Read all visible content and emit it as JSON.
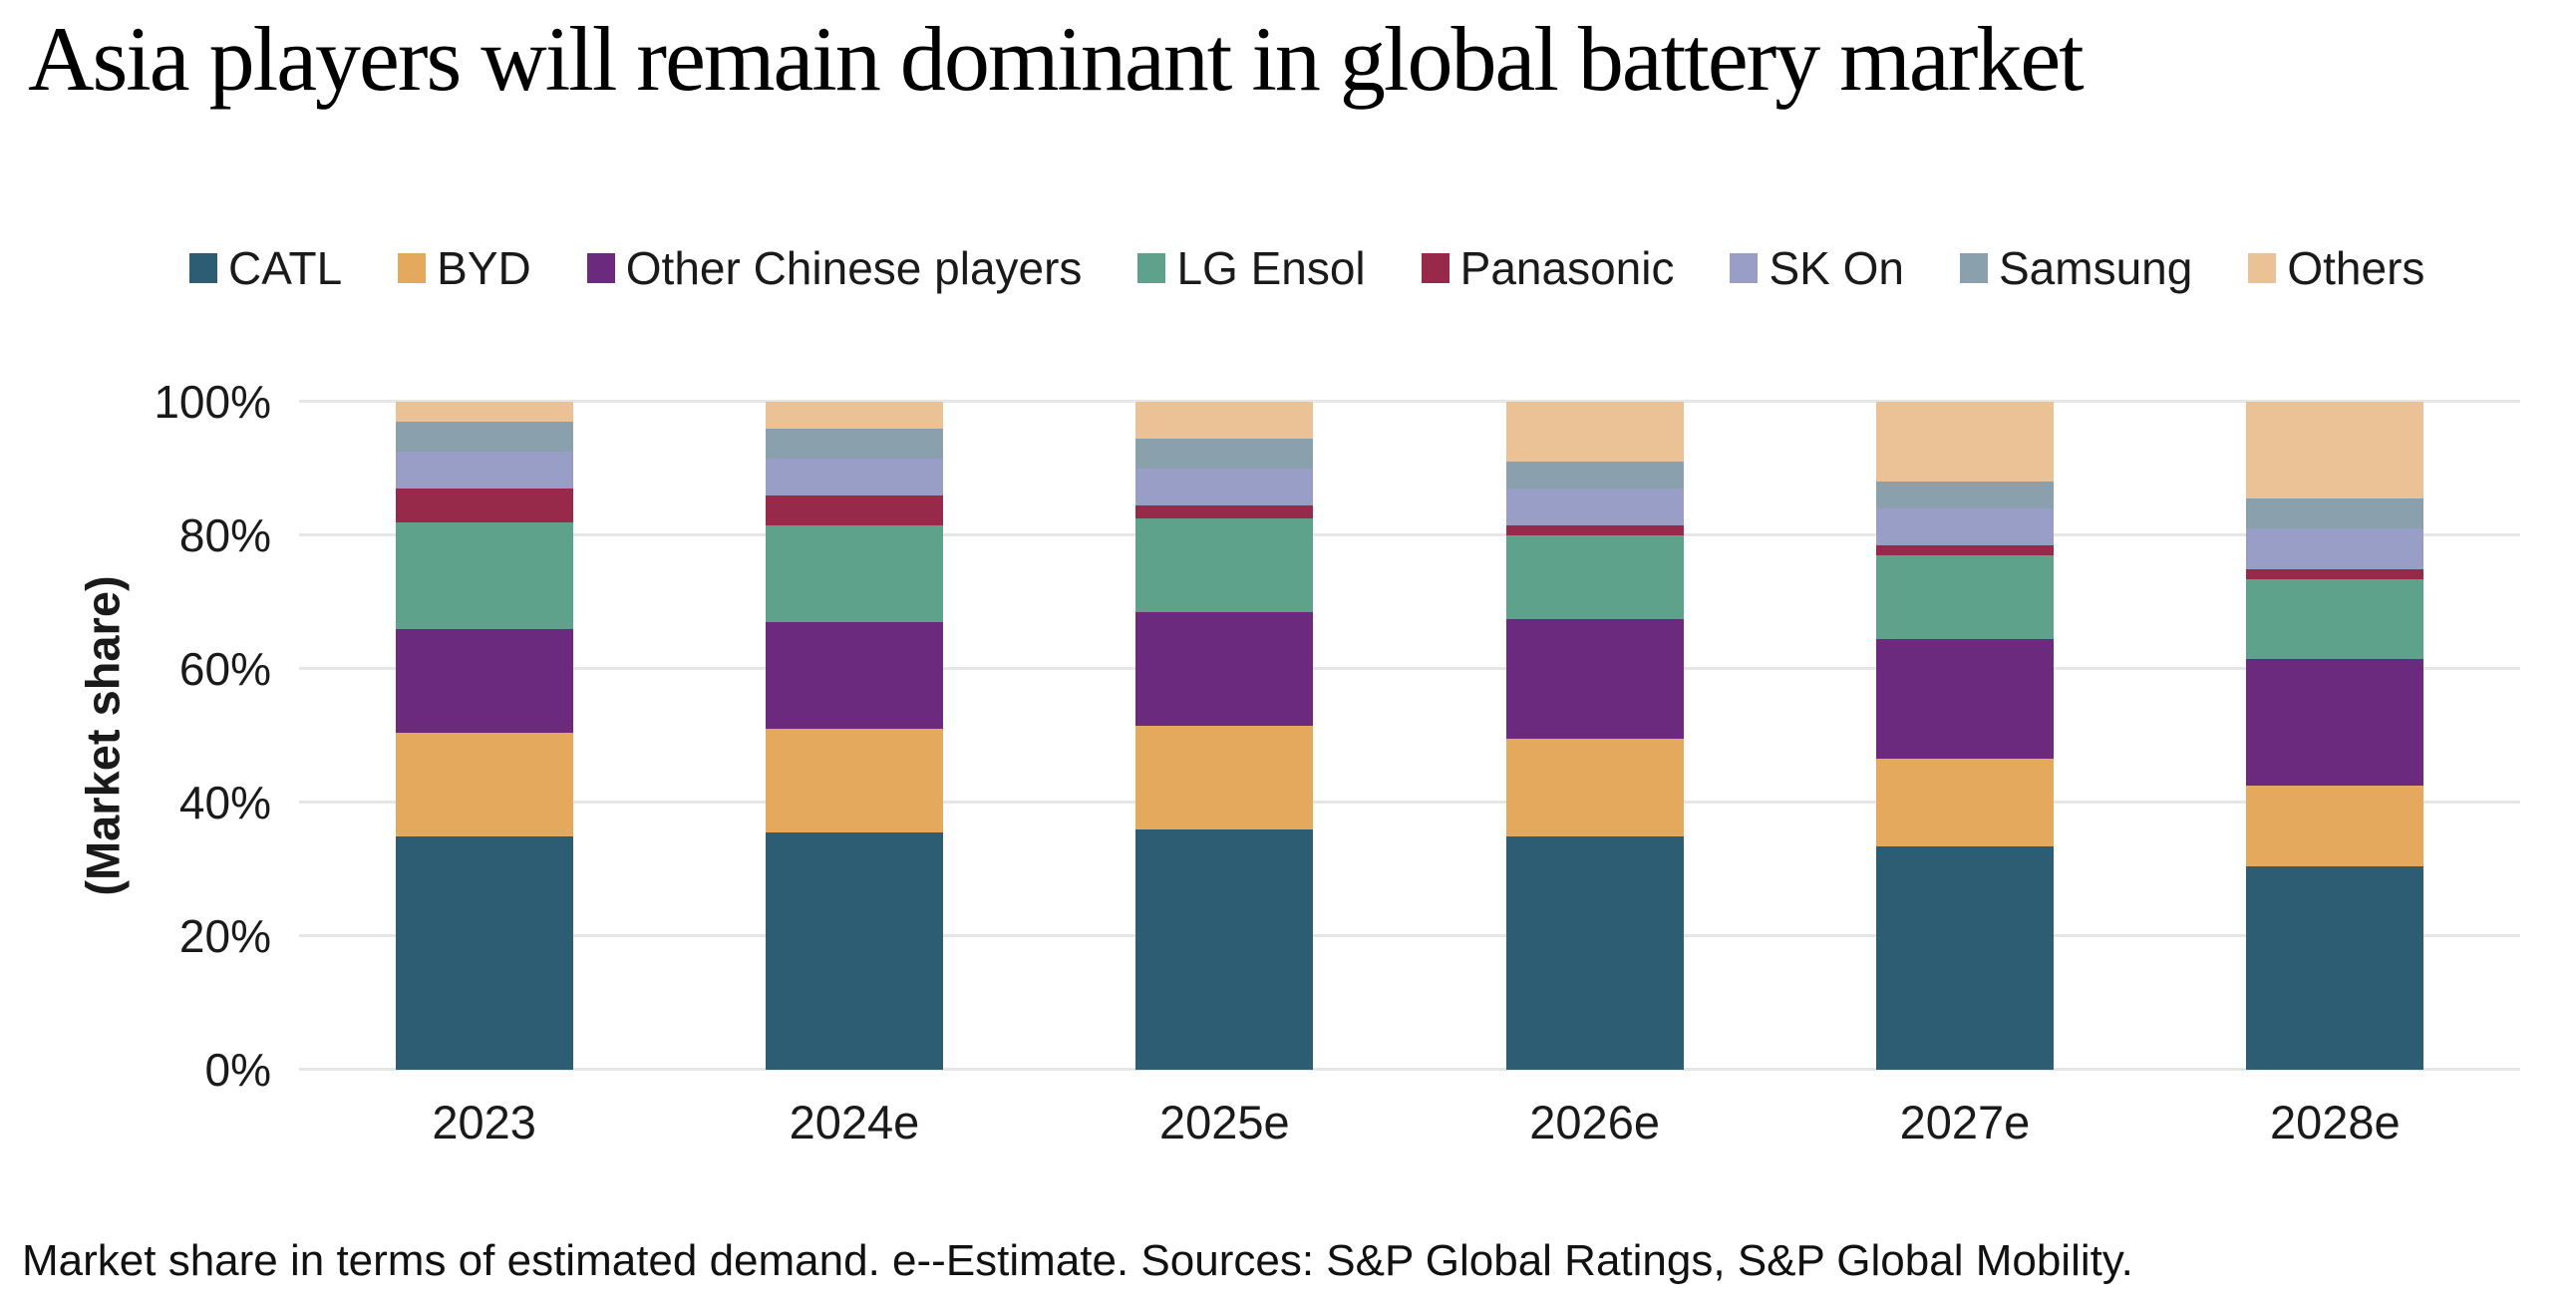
{
  "title": "Asia players will remain dominant in global battery market",
  "footnote": "Market share in terms of estimated demand. e--Estimate. Sources: S&P Global Ratings, S&P Global Mobility.",
  "colors": {
    "background": "#ffffff",
    "grid": "#e6e6e6",
    "text": "#1a1a1a",
    "title_text": "#000000"
  },
  "chart_data": {
    "type": "bar",
    "stacked": true,
    "title": "Asia players will remain dominant in global battery market",
    "xlabel": "",
    "ylabel": "(Market share)",
    "ylim": [
      0,
      100
    ],
    "unit": "percent",
    "grid": "horizontal",
    "legend_position": "top",
    "yticks": [
      "0%",
      "20%",
      "40%",
      "60%",
      "80%",
      "100%"
    ],
    "categories": [
      "2023",
      "2024e",
      "2025e",
      "2026e",
      "2027e",
      "2028e"
    ],
    "series": [
      {
        "name": "CATL",
        "color": "#2D5D73",
        "values": [
          35,
          35.5,
          36,
          35,
          33.5,
          30.5
        ]
      },
      {
        "name": "BYD",
        "color": "#E4A95C",
        "values": [
          15.5,
          15.5,
          15.5,
          14.5,
          13,
          12
        ]
      },
      {
        "name": "Other Chinese players",
        "color": "#6C2A7E",
        "values": [
          15.5,
          16,
          17,
          18,
          18,
          19
        ]
      },
      {
        "name": "LG Ensol",
        "color": "#5FA28C",
        "values": [
          16,
          14.5,
          14,
          12.5,
          12.5,
          12
        ]
      },
      {
        "name": "Panasonic",
        "color": "#97294A",
        "values": [
          5,
          4.5,
          2,
          1.5,
          1.5,
          1.5
        ]
      },
      {
        "name": "SK On",
        "color": "#989EC6",
        "values": [
          5.5,
          5.5,
          5.5,
          5.5,
          5.5,
          6
        ]
      },
      {
        "name": "Samsung",
        "color": "#8AA0AD",
        "values": [
          4.5,
          4.5,
          4.5,
          4,
          4,
          4.5
        ]
      },
      {
        "name": "Others",
        "color": "#EBC295",
        "values": [
          3,
          4,
          5.5,
          9,
          12,
          14.5
        ]
      }
    ]
  }
}
